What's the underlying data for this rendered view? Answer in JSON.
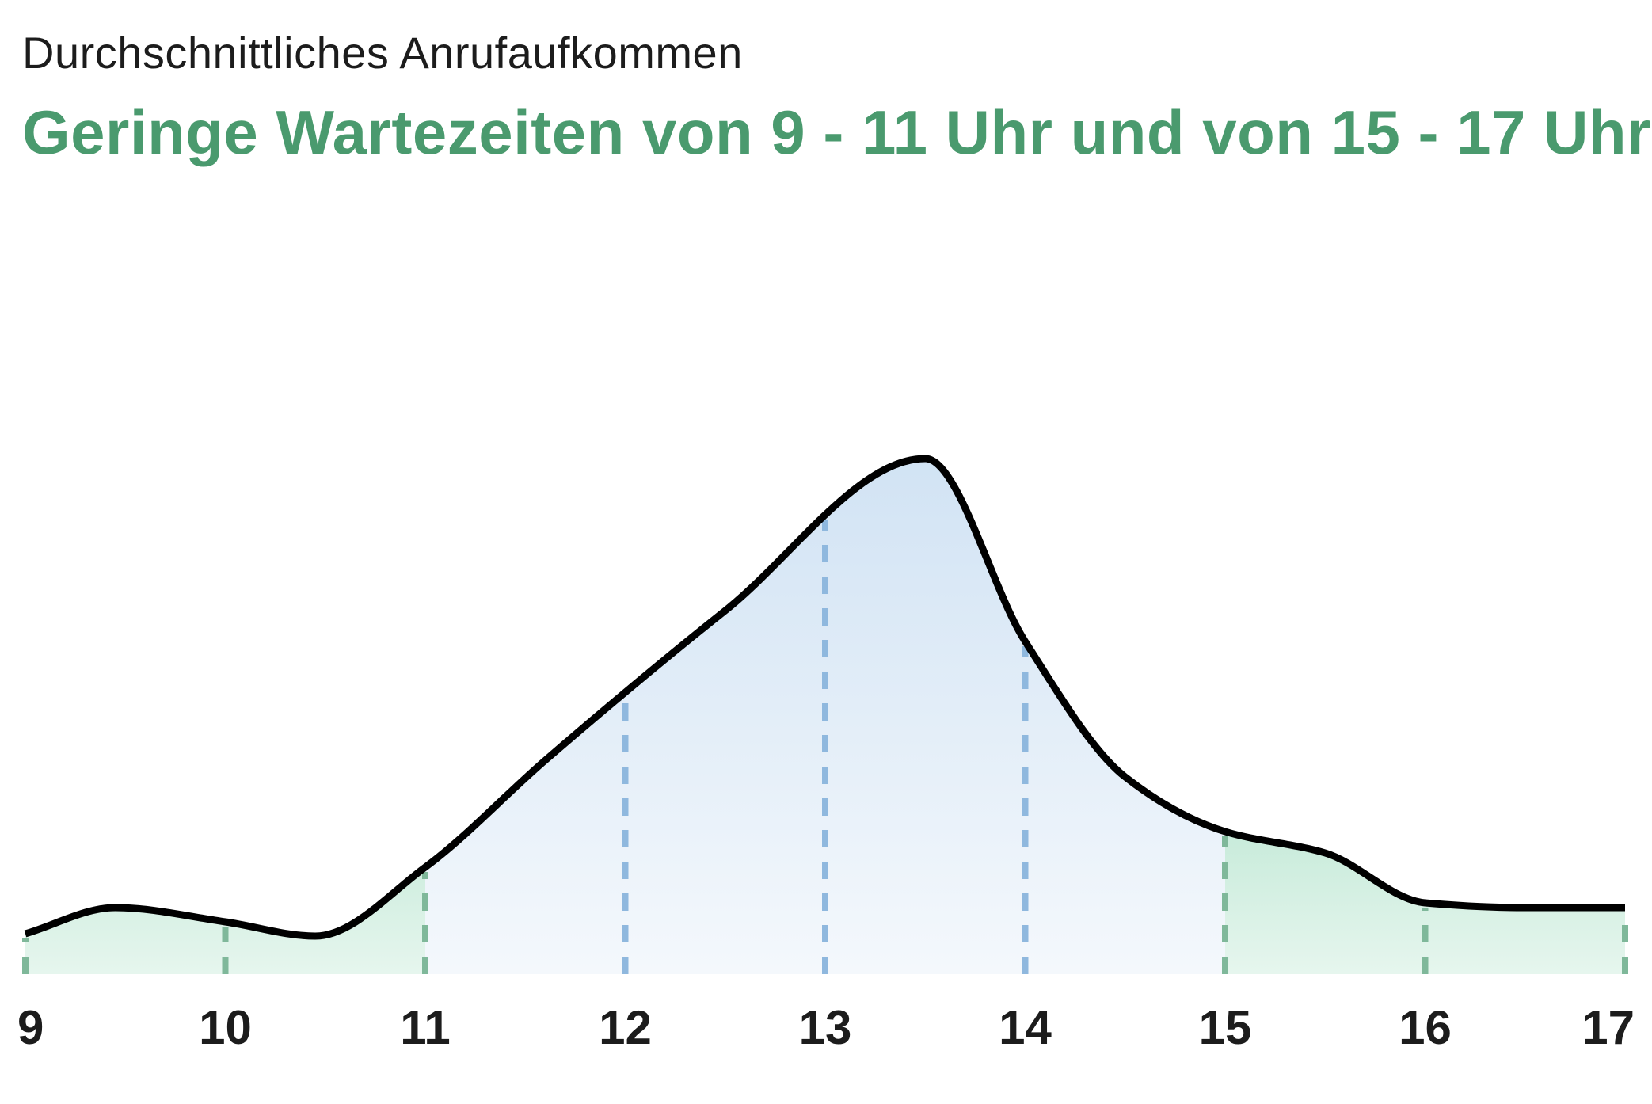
{
  "header": {
    "subtitle": "Durchschnittliches Anrufaufkommen",
    "title": "Geringe Wartezeiten von 9 - 11 Uhr und von 15 - 17 Uhr"
  },
  "colors": {
    "low": "#5ec495",
    "high": "#c9def2",
    "line": "#000000",
    "title": "#4a9a6e",
    "grid_low": "#7fb89a",
    "grid_high": "#8fb8de"
  },
  "chart_data": {
    "type": "area",
    "x": [
      9,
      9.45,
      10,
      10.45,
      11,
      11.6,
      12.5,
      13.5,
      14,
      14.5,
      15,
      15.5,
      16,
      16.5,
      17
    ],
    "values": [
      0.17,
      0.28,
      0.22,
      0.16,
      0.45,
      0.9,
      1.53,
      2.17,
      1.4,
      0.83,
      0.6,
      0.51,
      0.3,
      0.28,
      0.28
    ],
    "xlim": [
      9,
      17
    ],
    "ylim": [
      0,
      2.7
    ],
    "tick_labels": [
      "9",
      "10",
      "11",
      "12",
      "13",
      "14",
      "15",
      "16",
      "17"
    ],
    "highlight_ranges": [
      [
        9,
        11
      ],
      [
        15,
        17
      ]
    ],
    "grid": "vertical-dashed",
    "title": "Geringe Wartezeiten von 9 - 11 Uhr und von 15 - 17 Uhr",
    "subtitle": "Durchschnittliches Anrufaufkommen"
  }
}
